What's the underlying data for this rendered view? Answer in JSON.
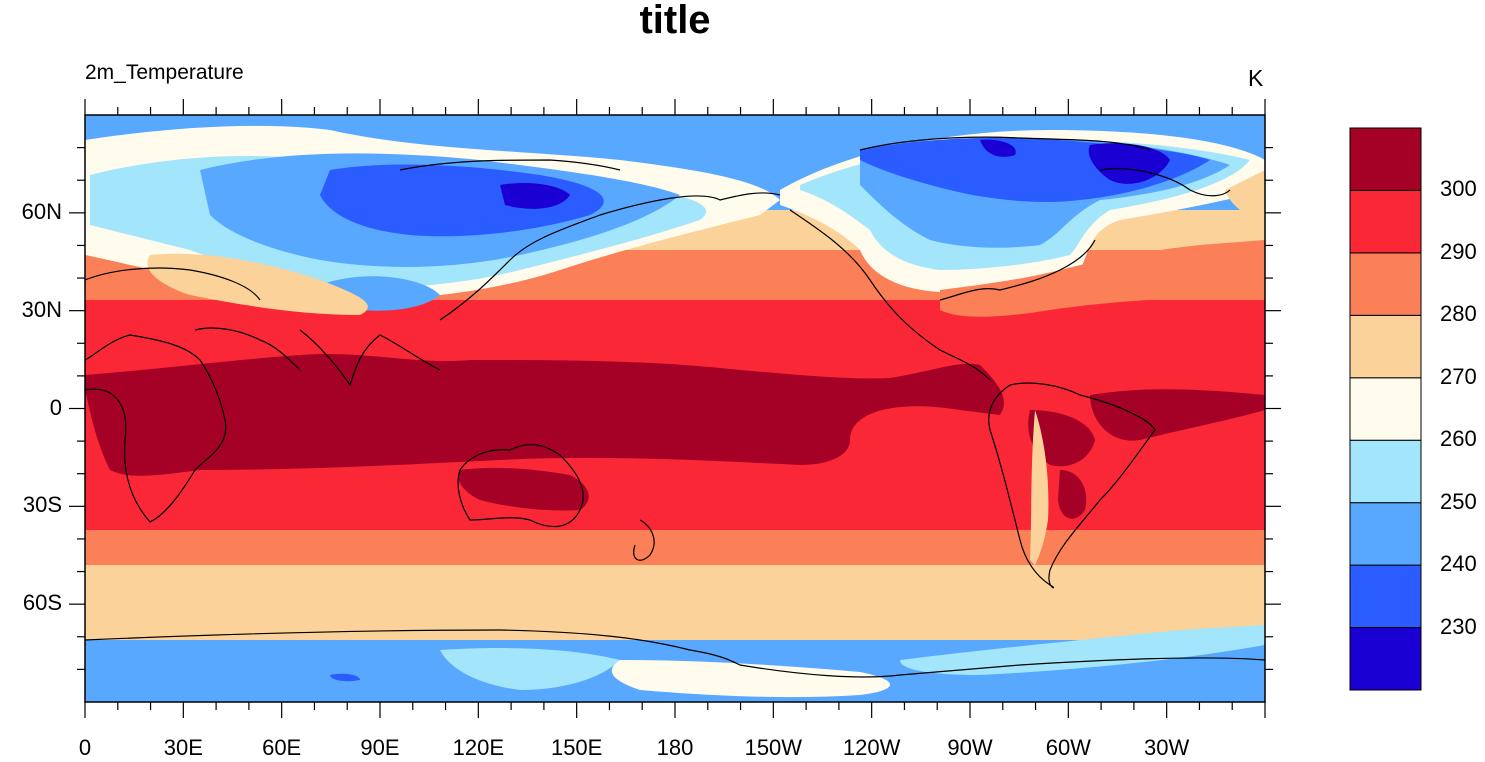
{
  "title": "title",
  "left_string": "2m_Temperature",
  "right_string": "K",
  "map": {
    "projection": "cylindrical-equidistant",
    "lon_range": [
      0,
      360
    ],
    "lat_range": [
      -90,
      90
    ],
    "field": "2m_Temperature",
    "coastlines": true
  },
  "axes": {
    "lat_ticks": [
      {
        "value": 60,
        "label": "60N"
      },
      {
        "value": 30,
        "label": "30N"
      },
      {
        "value": 0,
        "label": "0"
      },
      {
        "value": -30,
        "label": "30S"
      },
      {
        "value": -60,
        "label": "60S"
      }
    ],
    "lon_ticks": [
      {
        "value": 0,
        "label": "0"
      },
      {
        "value": 30,
        "label": "30E"
      },
      {
        "value": 60,
        "label": "60E"
      },
      {
        "value": 90,
        "label": "90E"
      },
      {
        "value": 120,
        "label": "120E"
      },
      {
        "value": 150,
        "label": "150E"
      },
      {
        "value": 180,
        "label": "180"
      },
      {
        "value": 210,
        "label": "150W"
      },
      {
        "value": 240,
        "label": "120W"
      },
      {
        "value": 270,
        "label": "90W"
      },
      {
        "value": 300,
        "label": "60W"
      },
      {
        "value": 330,
        "label": "30W"
      }
    ]
  },
  "colorbar": {
    "levels": [
      230,
      240,
      250,
      260,
      270,
      280,
      290,
      300
    ],
    "colors": [
      "#1b00d3",
      "#2a5cff",
      "#58a8ff",
      "#a3e5fb",
      "#fffcee",
      "#fbd39a",
      "#fb7f57",
      "#fa2836",
      "#a50026"
    ],
    "labels": [
      "230",
      "240",
      "250",
      "260",
      "270",
      "280",
      "290",
      "300"
    ]
  }
}
